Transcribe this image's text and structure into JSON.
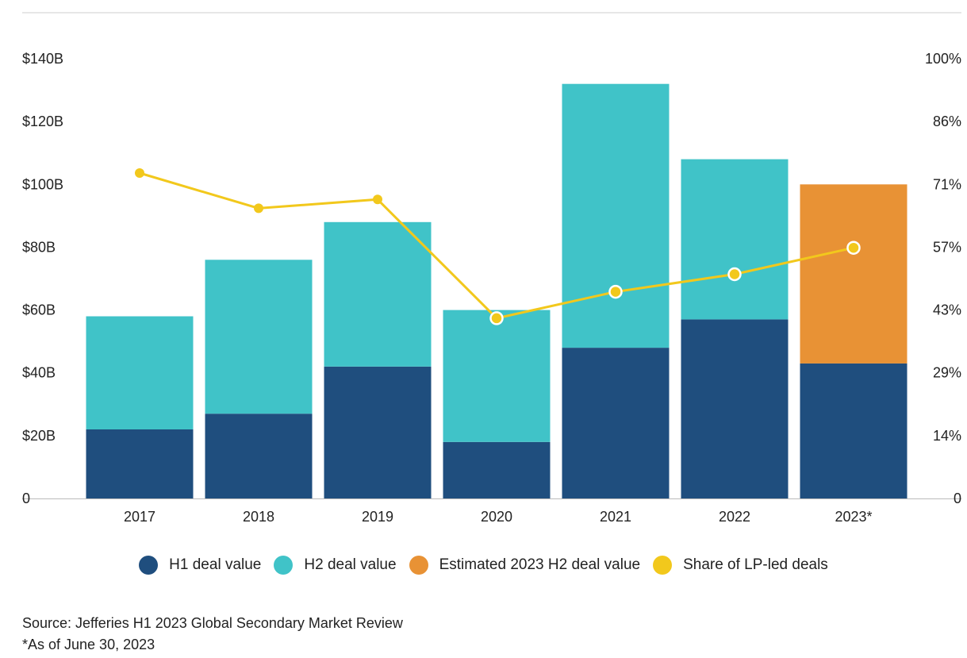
{
  "chart_data": {
    "type": "bar",
    "stacked": true,
    "categories": [
      "2017",
      "2018",
      "2019",
      "2020",
      "2021",
      "2022",
      "2023*"
    ],
    "series": [
      {
        "name": "H1 deal value",
        "color": "#1f4e7e",
        "values": [
          22,
          27,
          42,
          18,
          48,
          57,
          43
        ],
        "axis": "left"
      },
      {
        "name": "H2 deal value",
        "color": "#40c3c8",
        "values": [
          36,
          49,
          46,
          42,
          84,
          51,
          0
        ],
        "axis": "left"
      },
      {
        "name": "Estimated 2023 H2 deal value",
        "color": "#e89235",
        "values": [
          0,
          0,
          0,
          0,
          0,
          0,
          57
        ],
        "axis": "left"
      },
      {
        "name": "Share of LP-led deals",
        "type": "line",
        "color": "#f2c81c",
        "values": [
          74,
          66,
          68,
          41,
          47,
          51,
          57
        ],
        "axis": "right"
      }
    ],
    "left_axis": {
      "min": 0,
      "max": 140,
      "ticks": [
        "0",
        "$20B",
        "$40B",
        "$60B",
        "$80B",
        "$100B",
        "$120B",
        "$140B"
      ]
    },
    "right_axis": {
      "min": 0,
      "max": 100,
      "ticks": [
        "0",
        "14%",
        "29%",
        "43%",
        "57%",
        "71%",
        "86%",
        "100%"
      ]
    },
    "legend_position": "bottom",
    "grid": false
  },
  "footer": {
    "source": "Source: Jefferies H1 2023 Global Secondary Market Review",
    "note": "*As of June 30, 2023"
  }
}
